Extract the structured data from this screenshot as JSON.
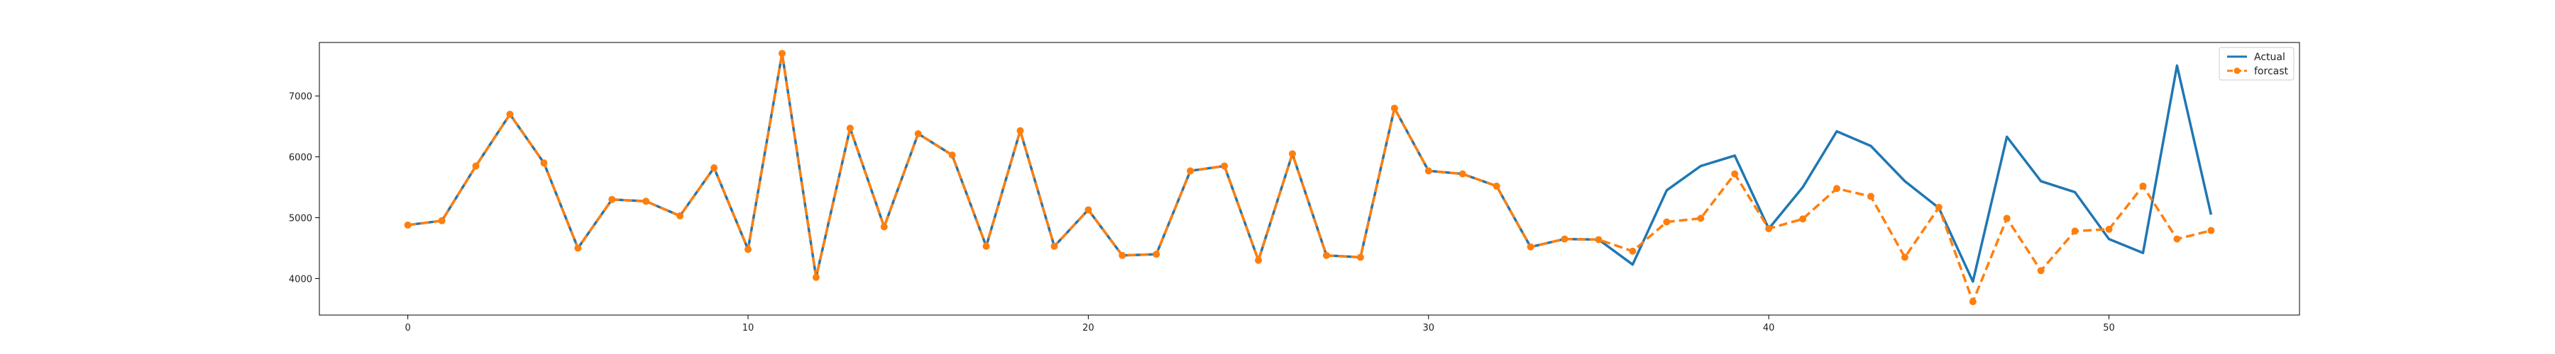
{
  "chart_data": {
    "type": "line",
    "title": "",
    "xlabel": "",
    "ylabel": "",
    "xlim": [
      -2.6,
      55.6
    ],
    "ylim": [
      3400,
      7880
    ],
    "x_ticks": [
      0,
      10,
      20,
      30,
      40,
      50
    ],
    "y_ticks": [
      4000,
      5000,
      6000,
      7000
    ],
    "grid": false,
    "legend_position": "top-right",
    "series": [
      {
        "name": "Actual",
        "color": "#1f77b4",
        "style": "solid",
        "marker": "none",
        "x": [
          0,
          1,
          2,
          3,
          4,
          5,
          6,
          7,
          8,
          9,
          10,
          11,
          12,
          13,
          14,
          15,
          16,
          17,
          18,
          19,
          20,
          21,
          22,
          23,
          24,
          25,
          26,
          27,
          28,
          29,
          30,
          31,
          32,
          33,
          34,
          35,
          36,
          37,
          38,
          39,
          40,
          41,
          42,
          43,
          44,
          45,
          46,
          47,
          48,
          49,
          50,
          51,
          52,
          53
        ],
        "values": [
          4880,
          4950,
          5850,
          6700,
          5900,
          4500,
          5300,
          5270,
          5030,
          5820,
          4480,
          7700,
          4020,
          6470,
          4850,
          6380,
          6030,
          4530,
          6430,
          4530,
          5130,
          4380,
          4400,
          5770,
          5850,
          4300,
          6050,
          4380,
          4350,
          6800,
          5770,
          5720,
          5520,
          4520,
          4650,
          4640,
          4230,
          5450,
          5850,
          6020,
          4820,
          5500,
          6420,
          6180,
          5600,
          5160,
          3950,
          6330,
          5600,
          5420,
          4650,
          4420,
          7500,
          5050
        ]
      },
      {
        "name": "forcast",
        "color": "#ff7f0e",
        "style": "dashed",
        "marker": "circle",
        "x": [
          0,
          1,
          2,
          3,
          4,
          5,
          6,
          7,
          8,
          9,
          10,
          11,
          12,
          13,
          14,
          15,
          16,
          17,
          18,
          19,
          20,
          21,
          22,
          23,
          24,
          25,
          26,
          27,
          28,
          29,
          30,
          31,
          32,
          33,
          34,
          35,
          36,
          37,
          38,
          39,
          40,
          41,
          42,
          43,
          44,
          45,
          46,
          47,
          48,
          49,
          50,
          51,
          52,
          53
        ],
        "values": [
          4880,
          4950,
          5850,
          6700,
          5900,
          4500,
          5300,
          5270,
          5030,
          5820,
          4480,
          7700,
          4020,
          6470,
          4850,
          6380,
          6030,
          4530,
          6430,
          4530,
          5130,
          4380,
          4400,
          5770,
          5850,
          4300,
          6050,
          4380,
          4350,
          6800,
          5770,
          5720,
          5520,
          4520,
          4650,
          4640,
          4450,
          4930,
          4990,
          5720,
          4820,
          4980,
          5480,
          5350,
          4350,
          5170,
          3620,
          4990,
          4130,
          4780,
          4810,
          5520,
          4650,
          4790
        ]
      }
    ]
  }
}
